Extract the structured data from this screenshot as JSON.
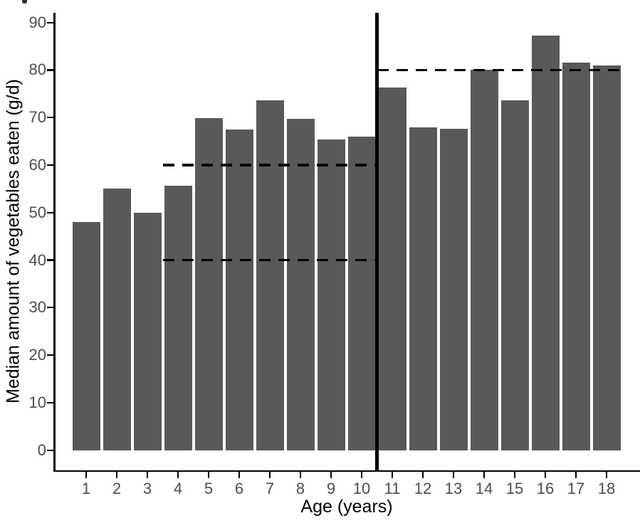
{
  "chart_data": {
    "type": "bar",
    "title": "",
    "xlabel": "Age (years)",
    "ylabel": "Median amount of vegetables eaten (g/d)",
    "categories": [
      "1",
      "2",
      "3",
      "4",
      "5",
      "6",
      "7",
      "8",
      "9",
      "10",
      "11",
      "12",
      "13",
      "14",
      "15",
      "16",
      "17",
      "18"
    ],
    "values": [
      48,
      55,
      50,
      55.6,
      69.9,
      67.5,
      73.7,
      69.8,
      65.4,
      66,
      76.3,
      68,
      67.7,
      80,
      73.6,
      87.3,
      81.5,
      81
    ],
    "ylim": [
      0,
      90
    ],
    "yticks": [
      0,
      10,
      20,
      30,
      40,
      50,
      60,
      70,
      80,
      90
    ],
    "grid": false,
    "legend": "none",
    "bar_color": "#595959",
    "axis_line_color": "#000000",
    "tick_label_color": "#4d4d4d",
    "axis_title_color": "#000000",
    "annotations": {
      "vertical_line": {
        "x": 10.5,
        "style": "solid",
        "color": "#000000"
      },
      "reference_lines": [
        {
          "y": 60,
          "x_start": 3.5,
          "x_end": 10.5,
          "style": "dashed",
          "color": "#000000"
        },
        {
          "y": 40,
          "x_start": 3.5,
          "x_end": 10.5,
          "style": "dashed",
          "color": "#000000"
        },
        {
          "y": 80,
          "x_start": 10.5,
          "x_end": 18.55,
          "style": "dashed",
          "color": "#000000"
        }
      ]
    }
  }
}
